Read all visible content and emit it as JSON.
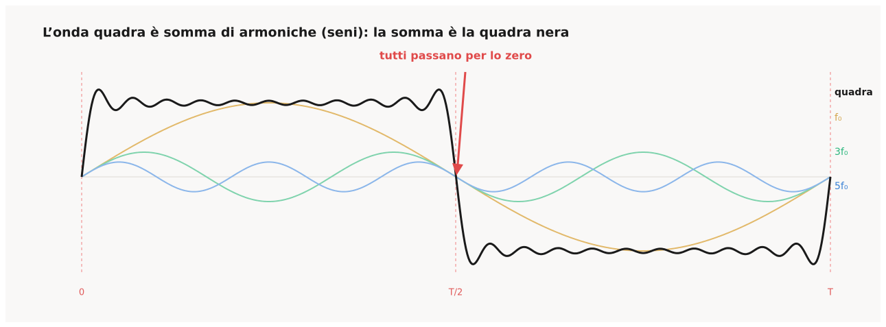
{
  "title": "L’onda quadra è somma di armoniche (seni): la somma è la quadra nera",
  "annotation": "tutti passano per lo zero",
  "legend": {
    "square": "quadra",
    "f1": "f₀",
    "f3": "3f₀",
    "f5": "5f₀"
  },
  "axis_labels": {
    "start": "0",
    "half": "T/2",
    "end": "T"
  }
}
